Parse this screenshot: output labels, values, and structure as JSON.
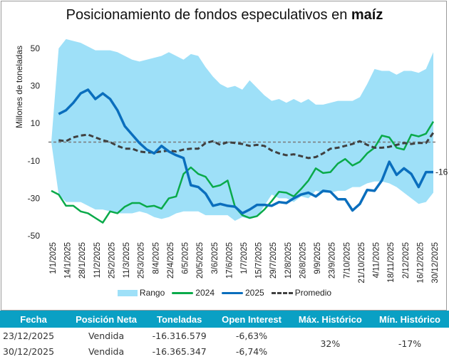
{
  "chart_data": {
    "type": "line",
    "title": "Posicionamiento de fondos especulativos en",
    "title_bold": "maíz",
    "xlabel": "",
    "ylabel": "Millones de toneladas",
    "ylim": [
      -50,
      55
    ],
    "yticks": [
      50,
      30,
      10,
      -10,
      -30,
      -50
    ],
    "xtick_labels": [
      "1/1/2025",
      "14/1/2025",
      "28/1/2025",
      "11/2/2025",
      "25/2/2025",
      "11/3/2025",
      "25/3/2025",
      "8/4/2025",
      "22/4/2025",
      "6/5/2025",
      "20/5/2025",
      "3/6/2025",
      "17/6/2025",
      "1/7/2025",
      "15/7/2025",
      "29/7/2025",
      "12/8/2025",
      "26/8/2025",
      "9/9/2025",
      "23/9/2025",
      "7/10/2025",
      "21/10/2025",
      "4/11/2025",
      "18/11/2025",
      "2/12/2025",
      "16/12/2025",
      "30/12/2025"
    ],
    "n_weeks": 53,
    "reference_line": 0,
    "end_label": "-16",
    "legend_position": "bottom",
    "series": [
      {
        "name": "Rango",
        "type": "band",
        "upper": [
          0,
          50,
          55,
          54,
          53,
          51,
          49,
          49,
          49,
          48,
          46,
          44,
          43,
          44,
          45,
          46,
          48,
          46,
          44,
          47,
          46,
          40,
          35,
          31,
          29,
          30,
          28,
          33,
          29,
          25,
          22,
          23,
          21,
          23,
          21,
          23,
          20,
          20,
          21,
          22,
          22,
          22,
          24,
          31,
          39,
          38,
          38,
          36,
          38,
          38,
          37,
          39,
          48
        ],
        "lower": [
          0,
          -28,
          -32,
          -32,
          -32,
          -34,
          -36,
          -36,
          -37,
          -38,
          -38,
          -38,
          -37,
          -38,
          -40,
          -41,
          -40,
          -38,
          -37,
          -37,
          -37,
          -39,
          -39,
          -39,
          -39,
          -42,
          -40,
          -41,
          -40,
          -34,
          -28,
          -30,
          -30,
          -32,
          -29,
          -30,
          -26,
          -27,
          -27,
          -26,
          -26,
          -24,
          -24,
          -22,
          -21,
          -21,
          -22,
          -24,
          -27,
          -30,
          -33,
          -32,
          -27
        ]
      },
      {
        "name": "2024",
        "color": "#0aaa4a",
        "values": [
          -26,
          -28,
          -34,
          -34,
          -37,
          -38,
          -40.5,
          -43,
          -37,
          -38,
          -34.5,
          -32.5,
          -32.5,
          -34.5,
          -34,
          -35.5,
          -30,
          -29,
          -17,
          -13.5,
          -17,
          -18.5,
          -24,
          -23,
          -20.5,
          -34.5,
          -39,
          -40.5,
          -39.5,
          -36,
          -31.5,
          -26.5,
          -27,
          -29,
          -25,
          -20.5,
          -14,
          -16.5,
          -16,
          -11.5,
          -9,
          -12.5,
          -10.5,
          -6,
          -3,
          3.5,
          2.5,
          -3,
          -4,
          4,
          3,
          4.5,
          11
        ]
      },
      {
        "name": "2025",
        "color": "#0a6ebd",
        "values": [
          null,
          15,
          17,
          21,
          26,
          28,
          23,
          26,
          23,
          17,
          8.5,
          4,
          -0.5,
          -4,
          -6,
          -2,
          -5,
          -7,
          -8.5,
          -23,
          -24,
          -27.5,
          -34,
          -33,
          -34,
          -34.5,
          -38,
          -36,
          -33.5,
          -33.5,
          -34,
          -32,
          -32.5,
          -30,
          -28,
          -27,
          -29,
          -26,
          -26.5,
          -30.5,
          -30.5,
          -36.5,
          -33,
          -25.5,
          -26,
          -20.5,
          -10.5,
          -17.5,
          -14,
          -17,
          -24,
          -16,
          -16
        ]
      },
      {
        "name": "Promedio",
        "color": "#404040",
        "dashed": true,
        "values": [
          null,
          1,
          0.5,
          2.5,
          3.5,
          4,
          2.5,
          1,
          0,
          -2,
          -3.5,
          -3.5,
          -5,
          -5.5,
          -5.5,
          -5,
          -4.5,
          -5,
          -4,
          -3.5,
          -3.5,
          -0.5,
          0.5,
          -1.5,
          0,
          -0.5,
          -1,
          -2,
          -1.5,
          -2,
          -4.5,
          -6,
          -7,
          -6.5,
          -7.5,
          -8.5,
          -8,
          -6,
          -3.5,
          -3,
          -2,
          -1,
          0.5,
          -1.5,
          -3,
          -3,
          -2.5,
          -1.5,
          -0.5,
          -1,
          -0.5,
          -0.5,
          5
        ]
      }
    ]
  },
  "legend": {
    "items": [
      "Rango",
      "2024",
      "2025",
      "Promedio"
    ]
  },
  "table": {
    "headers": [
      "Fecha",
      "Posición Neta",
      "Toneladas",
      "Open Interest",
      "Máx. Histórico",
      "Mín. Histórico"
    ],
    "rows": [
      {
        "fecha": "23/12/2025",
        "posicion": "Vendida",
        "toneladas": "-16.316.579",
        "open_interest": "-6,63%"
      },
      {
        "fecha": "30/12/2025",
        "posicion": "Vendida",
        "toneladas": "-16.365.347",
        "open_interest": "-6,74%"
      }
    ],
    "max_historico": "32%",
    "min_historico": "-17%"
  }
}
